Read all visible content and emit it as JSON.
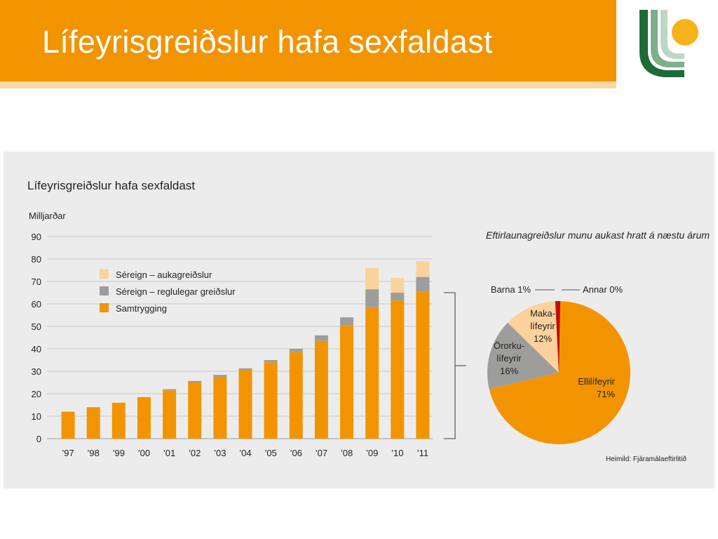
{
  "slide": {
    "title": "Lífeyrisgreiðslur hafa sexfaldast"
  },
  "colors": {
    "banner": "#f29400",
    "samtrygging": "#f29400",
    "reglulegar": "#9d9d9c",
    "aukagreidslur": "#fbd29d",
    "annar": "#c00d0d",
    "figure_bg": "#ececec"
  },
  "chart_data": [
    {
      "type": "bar",
      "stacked": true,
      "title": "Lífeyrisgreiðslur hafa sexfaldast",
      "ylabel": "Milljarðar",
      "ylim": [
        0,
        90
      ],
      "yticks": [
        0,
        10,
        20,
        30,
        40,
        50,
        60,
        70,
        80,
        90
      ],
      "grid": true,
      "legend_position": "top-left",
      "categories": [
        "’97",
        "’98",
        "’99",
        "’00",
        "’01",
        "’02",
        "’03",
        "’04",
        "’05",
        "’06",
        "’07",
        "’08",
        "’09",
        "’10",
        "’11"
      ],
      "series": [
        {
          "name": "Samtrygging",
          "color": "#f29400",
          "values": [
            12,
            14,
            16,
            18.5,
            21.5,
            25,
            27.5,
            30.5,
            34,
            38.5,
            43.5,
            50.5,
            58.5,
            61.5,
            65.5
          ]
        },
        {
          "name": "Séreign – reglulegar greiðslur",
          "color": "#9d9d9c",
          "values": [
            0,
            0,
            0,
            0,
            0.5,
            0.7,
            0.9,
            0.8,
            1,
            1.5,
            2.5,
            3.5,
            8,
            3.5,
            6.5
          ]
        },
        {
          "name": "Séreign – aukagreiðslur",
          "color": "#fbd29d",
          "values": [
            0,
            0,
            0,
            0,
            0,
            0,
            0,
            0,
            0,
            0,
            0,
            0,
            9.5,
            6.5,
            7
          ]
        }
      ]
    },
    {
      "type": "pie",
      "title": "Eftirlaunagreiðslur munu aukast hratt á næstu árum",
      "source": "Heimild: Fjáramálaeftirlitið",
      "slices": [
        {
          "name": "Ellilífeyrir",
          "value": 71,
          "value_label": "71%",
          "color": "#f29400"
        },
        {
          "name": "Örorku-lífeyrir",
          "value": 16,
          "value_label": "16%",
          "color": "#9d9d9c"
        },
        {
          "name": "Maka-lífeyrir",
          "value": 12,
          "value_label": "12%",
          "color": "#fbd29d"
        },
        {
          "name": "Barna",
          "value": 1,
          "value_label": "Barna 1%",
          "color": "#c00d0d"
        },
        {
          "name": "Annar",
          "value": 0,
          "value_label": "Annar 0%",
          "color": "#c00d0d"
        }
      ]
    }
  ]
}
